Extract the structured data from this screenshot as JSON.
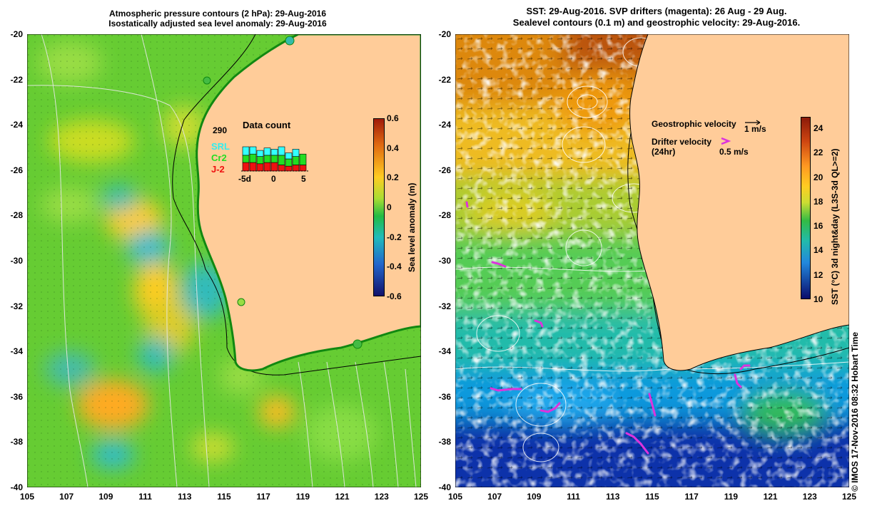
{
  "left_panel": {
    "title_line1": "Atmospheric pressure contours (2 hPa): 29-Aug-2016",
    "title_line2": "Isostatically adjusted sea level anomaly: 29-Aug-2016",
    "y_ticks": [
      "-20",
      "-22",
      "-24",
      "-26",
      "-28",
      "-30",
      "-32",
      "-34",
      "-36",
      "-38",
      "-40"
    ],
    "x_ticks": [
      "105",
      "107",
      "109",
      "111",
      "113",
      "115",
      "117",
      "119",
      "121",
      "123",
      "125"
    ],
    "colorbar_title": "Sea level anomaly (m)",
    "colorbar_ticks": [
      "0.6",
      "0.4",
      "0.2",
      "0",
      "-0.2",
      "-0.4",
      "-0.6"
    ],
    "data_count": {
      "title": "Data count",
      "total": "290",
      "series_labels": [
        "SRL",
        "Cr2",
        "J-2"
      ],
      "series_colors": [
        "#33ffff",
        "#22dd22",
        "#ee1111"
      ],
      "axis_labels": [
        "-5d",
        "0",
        "5"
      ],
      "bars": [
        {
          "srl": 0.35,
          "cr2": 0.3,
          "j2": 0.35
        },
        {
          "srl": 0.3,
          "cr2": 0.35,
          "j2": 0.35
        },
        {
          "srl": 0.25,
          "cr2": 0.3,
          "j2": 0.3
        },
        {
          "srl": 0.3,
          "cr2": 0.3,
          "j2": 0.35
        },
        {
          "srl": 0.25,
          "cr2": 0.3,
          "j2": 0.35
        },
        {
          "srl": 0.35,
          "cr2": 0.4,
          "j2": 0.25
        },
        {
          "srl": 0.25,
          "cr2": 0.3,
          "j2": 0.2
        },
        {
          "srl": 0.3,
          "cr2": 0.35,
          "j2": 0.25
        },
        {
          "srl": 0.0,
          "cr2": 0.45,
          "j2": 0.25
        }
      ]
    }
  },
  "right_panel": {
    "title_line1": "SST: 29-Aug-2016. SVP drifters (magenta): 26 Aug - 29 Aug.",
    "title_line2": "Sealevel contours (0.1 m) and geostrophic velocity: 29-Aug-2016.",
    "y_ticks": [
      "-20",
      "-22",
      "-24",
      "-26",
      "-28",
      "-30",
      "-32",
      "-34",
      "-36",
      "-38",
      "-40"
    ],
    "x_ticks": [
      "105",
      "107",
      "109",
      "111",
      "113",
      "115",
      "117",
      "119",
      "121",
      "123",
      "125"
    ],
    "colorbar_title": "SST (°C) 3d night&day (L3S-3d QL>=2)",
    "colorbar_ticks": [
      "24",
      "22",
      "20",
      "18",
      "16",
      "14",
      "12",
      "10"
    ],
    "legend": {
      "geostrophic_label": "Geostrophic velocity",
      "geostrophic_scale": "1 m/s",
      "drifter_label": "Drifter velocity",
      "drifter_sub": "(24hr)",
      "drifter_scale": "0.5 m/s"
    }
  },
  "copyright": "© IMOS 17-Nov-2016 08:32 Hobart Time",
  "colors": {
    "land": "#ffcc99",
    "drifter": "#dd33dd"
  }
}
